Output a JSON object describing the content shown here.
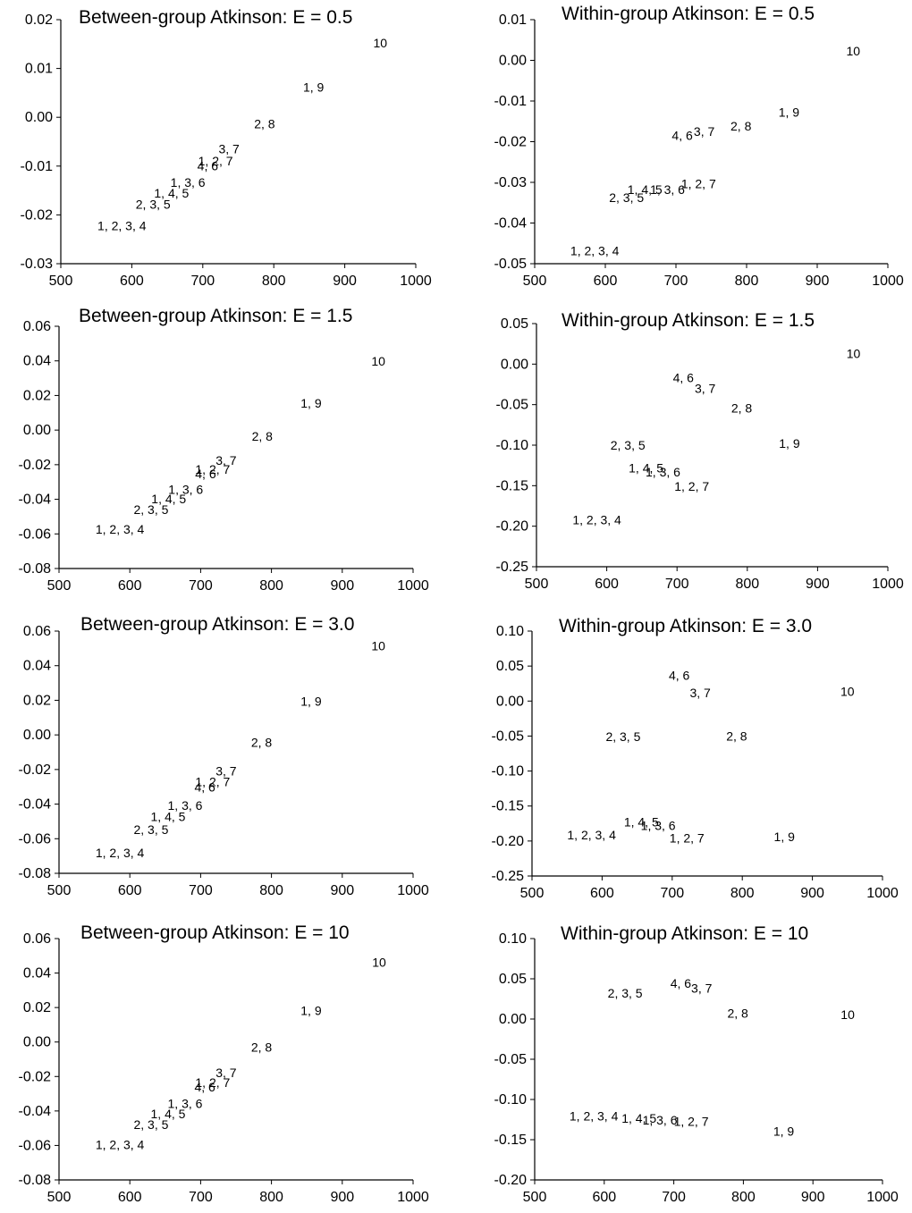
{
  "chart_data": [
    {
      "type": "scatter",
      "title": "Between-group Atkinson: E = 0.5",
      "xlim": [
        500,
        1000
      ],
      "xticks": [
        "500",
        "600",
        "700",
        "800",
        "900",
        "1000"
      ],
      "ylim": [
        -0.03,
        0.02
      ],
      "yticks": [
        "-0.03",
        "-0.02",
        "-0.01",
        "0.00",
        "0.01",
        "0.02"
      ],
      "points": [
        {
          "label": "1, 2, 3, 4",
          "x": 586,
          "y": -0.0222
        },
        {
          "label": "2, 3, 5",
          "x": 630,
          "y": -0.0178
        },
        {
          "label": "1, 4, 5",
          "x": 656,
          "y": -0.0155
        },
        {
          "label": "1, 3, 6",
          "x": 679,
          "y": -0.0133
        },
        {
          "label": "4, 6",
          "x": 707,
          "y": -0.0099
        },
        {
          "label": "1, 2, 7",
          "x": 718,
          "y": -0.0089
        },
        {
          "label": "3, 7",
          "x": 737,
          "y": -0.0065
        },
        {
          "label": "2, 8",
          "x": 787,
          "y": -0.0013
        },
        {
          "label": "1, 9",
          "x": 856,
          "y": 0.0062
        },
        {
          "label": "10",
          "x": 950,
          "y": 0.0152
        }
      ]
    },
    {
      "type": "scatter",
      "title": "Within-group Atkinson: E = 0.5",
      "xlim": [
        500,
        1000
      ],
      "xticks": [
        "500",
        "600",
        "700",
        "800",
        "900",
        "1000"
      ],
      "ylim": [
        -0.05,
        0.01
      ],
      "yticks": [
        "-0.05",
        "-0.04",
        "-0.03",
        "-0.02",
        "-0.01",
        "0.00",
        "0.01"
      ],
      "points": [
        {
          "label": "1, 2, 3, 4",
          "x": 585,
          "y": -0.0468
        },
        {
          "label": "2, 3, 5",
          "x": 630,
          "y": -0.0337
        },
        {
          "label": "1, 4, 5",
          "x": 656,
          "y": -0.0318
        },
        {
          "label": "1, 3, 6",
          "x": 688,
          "y": -0.0318
        },
        {
          "label": "1, 2, 7",
          "x": 732,
          "y": -0.0303
        },
        {
          "label": "4, 6",
          "x": 709,
          "y": -0.0185
        },
        {
          "label": "3, 7",
          "x": 740,
          "y": -0.0175
        },
        {
          "label": "2, 8",
          "x": 792,
          "y": -0.0162
        },
        {
          "label": "1, 9",
          "x": 860,
          "y": -0.0127
        },
        {
          "label": "10",
          "x": 951,
          "y": 0.0023
        }
      ]
    },
    {
      "type": "scatter",
      "title": "Between-group Atkinson: E = 1.5",
      "xlim": [
        500,
        1000
      ],
      "xticks": [
        "500",
        "600",
        "700",
        "800",
        "900",
        "1000"
      ],
      "ylim": [
        -0.08,
        0.06
      ],
      "yticks": [
        "-0.08",
        "-0.06",
        "-0.04",
        "-0.02",
        "0.00",
        "0.02",
        "0.04",
        "0.06"
      ],
      "points": [
        {
          "label": "1, 2, 3, 4",
          "x": 586,
          "y": -0.0572
        },
        {
          "label": "2, 3, 5",
          "x": 630,
          "y": -0.0458
        },
        {
          "label": "1, 4, 5",
          "x": 655,
          "y": -0.0396
        },
        {
          "label": "1, 3, 6",
          "x": 679,
          "y": -0.0342
        },
        {
          "label": "4, 6",
          "x": 707,
          "y": -0.0253
        },
        {
          "label": "1, 2, 7",
          "x": 717,
          "y": -0.0227
        },
        {
          "label": "3, 7",
          "x": 736,
          "y": -0.0174
        },
        {
          "label": "2, 8",
          "x": 787,
          "y": -0.0036
        },
        {
          "label": "1, 9",
          "x": 856,
          "y": 0.0157
        },
        {
          "label": "10",
          "x": 951,
          "y": 0.0398
        }
      ]
    },
    {
      "type": "scatter",
      "title": "Within-group Atkinson: E = 1.5",
      "xlim": [
        500,
        1000
      ],
      "xticks": [
        "500",
        "600",
        "700",
        "800",
        "900",
        "1000"
      ],
      "ylim": [
        -0.25,
        0.05
      ],
      "yticks": [
        "-0.25",
        "-0.20",
        "-0.15",
        "-0.10",
        "-0.05",
        "0.00",
        "0.05"
      ],
      "points": [
        {
          "label": "1, 2, 3, 4",
          "x": 586,
          "y": -0.192
        },
        {
          "label": "2, 3, 5",
          "x": 630,
          "y": -0.1
        },
        {
          "label": "1, 4, 5",
          "x": 656,
          "y": -0.128
        },
        {
          "label": "1, 3, 6",
          "x": 680,
          "y": -0.133
        },
        {
          "label": "1, 2, 7",
          "x": 721,
          "y": -0.151
        },
        {
          "label": "4, 6",
          "x": 709,
          "y": -0.017
        },
        {
          "label": "3, 7",
          "x": 740,
          "y": -0.03
        },
        {
          "label": "2, 8",
          "x": 792,
          "y": -0.054
        },
        {
          "label": "1, 9",
          "x": 860,
          "y": -0.098
        },
        {
          "label": "10",
          "x": 951,
          "y": 0.013
        }
      ]
    },
    {
      "type": "scatter",
      "title": "Between-group Atkinson: E = 3.0",
      "xlim": [
        500,
        1000
      ],
      "xticks": [
        "500",
        "600",
        "700",
        "800",
        "900",
        "1000"
      ],
      "ylim": [
        -0.08,
        0.06
      ],
      "yticks": [
        "-0.08",
        "-0.06",
        "-0.04",
        "-0.02",
        "0.00",
        "0.02",
        "0.04",
        "0.06"
      ],
      "points": [
        {
          "label": "1, 2, 3, 4",
          "x": 586,
          "y": -0.0681
        },
        {
          "label": "2, 3, 5",
          "x": 630,
          "y": -0.0546
        },
        {
          "label": "1, 4, 5",
          "x": 654,
          "y": -0.0472
        },
        {
          "label": "1, 3, 6",
          "x": 678,
          "y": -0.0408
        },
        {
          "label": "4, 6",
          "x": 706,
          "y": -0.0302
        },
        {
          "label": "1, 2, 7",
          "x": 717,
          "y": -0.027
        },
        {
          "label": "3, 7",
          "x": 736,
          "y": -0.0208
        },
        {
          "label": "2, 8",
          "x": 786,
          "y": -0.0043
        },
        {
          "label": "1, 9",
          "x": 856,
          "y": 0.0194
        },
        {
          "label": "10",
          "x": 951,
          "y": 0.0516
        }
      ]
    },
    {
      "type": "scatter",
      "title": "Within-group Atkinson: E = 3.0",
      "xlim": [
        500,
        1000
      ],
      "xticks": [
        "500",
        "600",
        "700",
        "800",
        "900",
        "1000"
      ],
      "ylim": [
        -0.25,
        0.1
      ],
      "yticks": [
        "-0.25",
        "-0.20",
        "-0.15",
        "-0.10",
        "-0.05",
        "0.00",
        "0.05",
        "0.10"
      ],
      "points": [
        {
          "label": "1, 2, 3, 4",
          "x": 585,
          "y": -0.191
        },
        {
          "label": "2, 3, 5",
          "x": 630,
          "y": -0.051
        },
        {
          "label": "1, 4, 5",
          "x": 656,
          "y": -0.173
        },
        {
          "label": "1, 3, 6",
          "x": 680,
          "y": -0.178
        },
        {
          "label": "1, 2, 7",
          "x": 721,
          "y": -0.196
        },
        {
          "label": "4, 6",
          "x": 710,
          "y": 0.037
        },
        {
          "label": "3, 7",
          "x": 740,
          "y": 0.012
        },
        {
          "label": "2, 8",
          "x": 792,
          "y": -0.05
        },
        {
          "label": "1, 9",
          "x": 860,
          "y": -0.194
        },
        {
          "label": "10",
          "x": 950,
          "y": 0.014
        }
      ]
    },
    {
      "type": "scatter",
      "title": "Between-group Atkinson: E = 10",
      "xlim": [
        500,
        1000
      ],
      "xticks": [
        "500",
        "600",
        "700",
        "800",
        "900",
        "1000"
      ],
      "ylim": [
        -0.08,
        0.06
      ],
      "yticks": [
        "-0.08",
        "-0.06",
        "-0.04",
        "-0.02",
        "0.00",
        "0.02",
        "0.04",
        "0.06"
      ],
      "points": [
        {
          "label": "1, 2, 3, 4",
          "x": 586,
          "y": -0.0596
        },
        {
          "label": "2, 3, 5",
          "x": 630,
          "y": -0.0479
        },
        {
          "label": "1, 4, 5",
          "x": 654,
          "y": -0.0416
        },
        {
          "label": "1, 3, 6",
          "x": 678,
          "y": -0.0357
        },
        {
          "label": "4, 6",
          "x": 706,
          "y": -0.0262
        },
        {
          "label": "1, 2, 7",
          "x": 717,
          "y": -0.0234
        },
        {
          "label": "3, 7",
          "x": 736,
          "y": -0.0179
        },
        {
          "label": "2, 8",
          "x": 786,
          "y": -0.0031
        },
        {
          "label": "1, 9",
          "x": 856,
          "y": 0.0182
        },
        {
          "label": "10",
          "x": 952,
          "y": 0.0462
        }
      ]
    },
    {
      "type": "scatter",
      "title": "Within-group Atkinson: E = 10",
      "xlim": [
        500,
        1000
      ],
      "xticks": [
        "500",
        "600",
        "700",
        "800",
        "900",
        "1000"
      ],
      "ylim": [
        -0.2,
        0.1
      ],
      "yticks": [
        "-0.20",
        "-0.15",
        "-0.10",
        "-0.05",
        "0.00",
        "0.05",
        "0.10"
      ],
      "points": [
        {
          "label": "1, 2, 3, 4",
          "x": 585,
          "y": -0.1205
        },
        {
          "label": "1, 4, 5",
          "x": 650,
          "y": -0.1235
        },
        {
          "label": "1, 3, 6",
          "x": 680,
          "y": -0.1255
        },
        {
          "label": "1, 2, 7",
          "x": 725,
          "y": -0.127
        },
        {
          "label": "2, 3, 5",
          "x": 630,
          "y": 0.0325
        },
        {
          "label": "4, 6",
          "x": 710,
          "y": 0.0445
        },
        {
          "label": "3, 7",
          "x": 740,
          "y": 0.0385
        },
        {
          "label": "2, 8",
          "x": 792,
          "y": 0.0075
        },
        {
          "label": "1, 9",
          "x": 858,
          "y": -0.1395
        },
        {
          "label": "10",
          "x": 950,
          "y": 0.0055
        }
      ]
    }
  ]
}
